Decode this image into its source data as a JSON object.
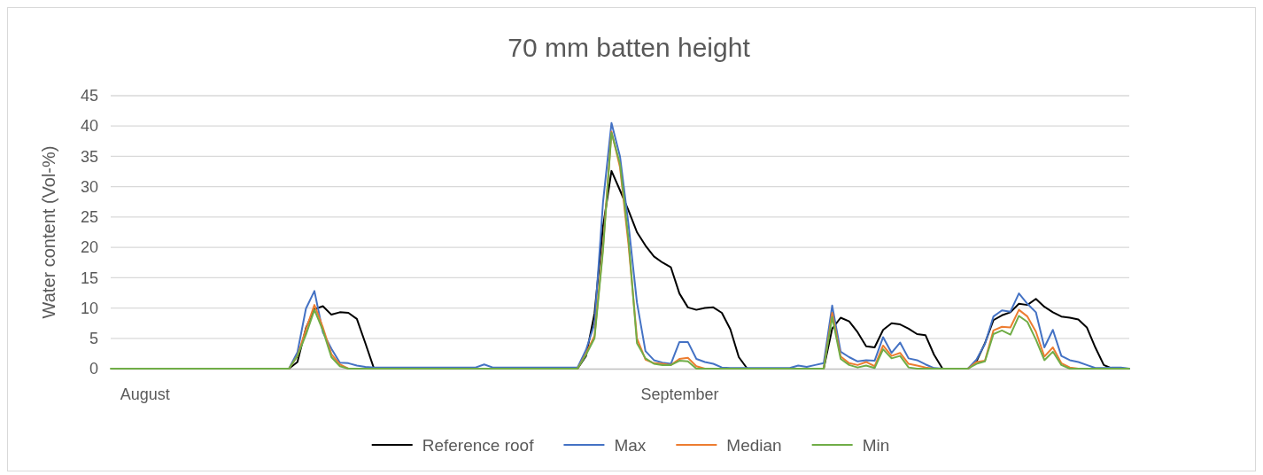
{
  "chart_data": {
    "type": "line",
    "title": "70 mm batten height",
    "ylabel": "Water content (Vol-%)",
    "categories": [
      null,
      null,
      null,
      null,
      "August",
      null,
      null,
      null,
      null,
      null,
      null,
      null,
      null,
      null,
      null,
      null,
      null,
      null,
      null,
      null,
      null,
      null,
      null,
      null,
      null,
      null,
      null,
      null,
      null,
      null,
      null,
      null,
      null,
      null,
      null,
      null,
      null,
      null,
      null,
      null,
      null,
      null,
      null,
      null,
      null,
      null,
      null,
      null,
      null,
      null,
      null,
      null,
      null,
      null,
      null,
      null,
      null,
      null,
      null,
      null,
      null,
      null,
      null,
      null,
      null,
      null,
      null,
      "September",
      null,
      null,
      null,
      null,
      null,
      null,
      null,
      null,
      null,
      null,
      null,
      null,
      null,
      null,
      null,
      null,
      null,
      null,
      null,
      null,
      null,
      null,
      null,
      null,
      null,
      null,
      null,
      null,
      null,
      null,
      null,
      null,
      null,
      null,
      null,
      null,
      null,
      null,
      null,
      null,
      null,
      null,
      null,
      null,
      null,
      null,
      null,
      null,
      null,
      null,
      null,
      null,
      null
    ],
    "ylim": [
      0,
      45
    ],
    "yticks": [
      0,
      5,
      10,
      15,
      20,
      25,
      30,
      35,
      40,
      45
    ],
    "grid": "y",
    "legend": "bottom",
    "marker": "none",
    "line_style": "solid",
    "series": [
      {
        "name": "Reference roof",
        "color": "#000000",
        "values": [
          null,
          null,
          null,
          null,
          null,
          null,
          null,
          null,
          null,
          null,
          null,
          null,
          null,
          null,
          null,
          null,
          null,
          null,
          null,
          null,
          null,
          0,
          1.1,
          6.7,
          9.8,
          10.3,
          8.9,
          9.3,
          9.2,
          8.2,
          4.2,
          0.1,
          0,
          null,
          null,
          null,
          null,
          null,
          null,
          null,
          null,
          null,
          null,
          null,
          null,
          null,
          null,
          null,
          null,
          null,
          null,
          null,
          null,
          null,
          null,
          0,
          2.1,
          9.1,
          23.4,
          32.6,
          29.4,
          26.1,
          22.5,
          20.3,
          18.5,
          17.5,
          16.7,
          12.4,
          10.1,
          9.7,
          10.0,
          10.1,
          9.2,
          6.5,
          1.9,
          0,
          null,
          null,
          null,
          null,
          null,
          null,
          null,
          null,
          0,
          6.6,
          8.4,
          7.8,
          6.0,
          3.7,
          3.5,
          6.4,
          7.5,
          7.3,
          6.6,
          5.7,
          5.5,
          2.3,
          0,
          null,
          null,
          0,
          1.2,
          4.2,
          8.0,
          8.8,
          9.3,
          10.7,
          10.5,
          11.5,
          10.2,
          9.3,
          8.6,
          8.4,
          8.1,
          6.8,
          3.5,
          0.6,
          0,
          null,
          null
        ]
      },
      {
        "name": "Max",
        "color": "#4472c4",
        "values": [
          null,
          null,
          null,
          null,
          null,
          null,
          null,
          null,
          null,
          null,
          null,
          null,
          null,
          null,
          null,
          null,
          null,
          null,
          null,
          null,
          null,
          0,
          2.7,
          9.9,
          12.8,
          6.0,
          3.3,
          1.0,
          0.9,
          0.5,
          0.3,
          0.2,
          0.2,
          0.2,
          0.2,
          0.2,
          0.2,
          0.2,
          0.2,
          0.2,
          0.2,
          0.2,
          0.2,
          0.2,
          0.7,
          0.2,
          0.2,
          0.2,
          0.2,
          0.2,
          0.2,
          0.2,
          0.2,
          0.2,
          0.2,
          0.2,
          3.1,
          7.4,
          27.4,
          40.5,
          35.0,
          23.8,
          10.9,
          2.9,
          1.4,
          1.0,
          0.8,
          4.4,
          4.4,
          1.6,
          1.1,
          0.8,
          0.2,
          0.1,
          0.1,
          0.1,
          0.1,
          0.1,
          0.1,
          0.1,
          0.1,
          0.5,
          0.3,
          0.6,
          0.9,
          10.4,
          2.8,
          1.9,
          1.2,
          1.4,
          1.3,
          5.2,
          2.6,
          4.3,
          1.7,
          1.4,
          0.7,
          0.1,
          0,
          null,
          null,
          0,
          1.5,
          4.1,
          8.6,
          9.6,
          9.4,
          12.4,
          10.7,
          9.3,
          3.5,
          6.4,
          2.1,
          1.4,
          1.1,
          0.6,
          0.1,
          0.1,
          0.2,
          0.2,
          0
        ]
      },
      {
        "name": "Median",
        "color": "#ed7d31",
        "values": [
          null,
          null,
          null,
          null,
          null,
          null,
          null,
          null,
          null,
          null,
          null,
          null,
          null,
          null,
          null,
          null,
          null,
          null,
          null,
          null,
          null,
          0,
          2.1,
          6.5,
          10.5,
          6.8,
          2.4,
          0.7,
          0,
          null,
          null,
          null,
          null,
          null,
          null,
          null,
          null,
          null,
          null,
          null,
          null,
          null,
          null,
          null,
          null,
          null,
          null,
          null,
          null,
          null,
          null,
          null,
          null,
          null,
          null,
          0,
          2.5,
          5.4,
          20.0,
          39.1,
          33.2,
          20.5,
          5.0,
          1.5,
          0.9,
          0.8,
          0.6,
          1.6,
          1.8,
          0.4,
          0,
          null,
          null,
          null,
          null,
          null,
          null,
          null,
          null,
          null,
          null,
          null,
          null,
          null,
          0,
          9.2,
          2.0,
          0.9,
          0.6,
          1.1,
          0.4,
          3.8,
          2.1,
          2.6,
          0.8,
          0.5,
          0.2,
          0,
          null,
          null,
          null,
          0,
          1.1,
          1.3,
          6.3,
          6.9,
          6.8,
          9.7,
          8.6,
          6.1,
          2.0,
          3.5,
          0.9,
          0.2,
          0,
          null,
          null,
          null,
          null,
          null,
          null
        ]
      },
      {
        "name": "Min",
        "color": "#70ad47",
        "values": [
          0,
          0,
          0,
          0,
          0,
          0,
          0,
          0,
          0,
          0,
          0,
          0,
          0,
          0,
          0,
          0,
          0,
          0,
          0,
          0,
          0,
          0,
          2.1,
          5.6,
          9.7,
          6.3,
          1.9,
          0.4,
          0,
          0,
          0,
          0,
          0,
          0,
          0,
          0,
          0,
          0,
          0,
          0,
          0,
          0,
          0,
          0,
          0,
          0,
          0,
          0,
          0,
          0,
          0,
          0,
          0,
          0,
          0,
          0,
          2.3,
          5.0,
          19.5,
          38.9,
          33.8,
          21.4,
          4.2,
          1.7,
          0.8,
          0.6,
          0.6,
          1.3,
          1.2,
          0,
          0,
          0,
          0,
          0,
          0,
          0,
          0,
          0,
          0,
          0,
          0,
          0,
          0,
          0,
          0,
          8.5,
          1.6,
          0.6,
          0.2,
          0.5,
          0.1,
          3.2,
          1.7,
          2.1,
          0.2,
          0,
          0,
          0,
          0,
          0,
          0,
          0,
          0.8,
          1.2,
          5.7,
          6.3,
          5.6,
          8.7,
          7.7,
          4.8,
          1.4,
          2.8,
          0.6,
          0,
          0,
          0,
          0,
          0,
          0,
          0,
          0
        ]
      }
    ]
  }
}
